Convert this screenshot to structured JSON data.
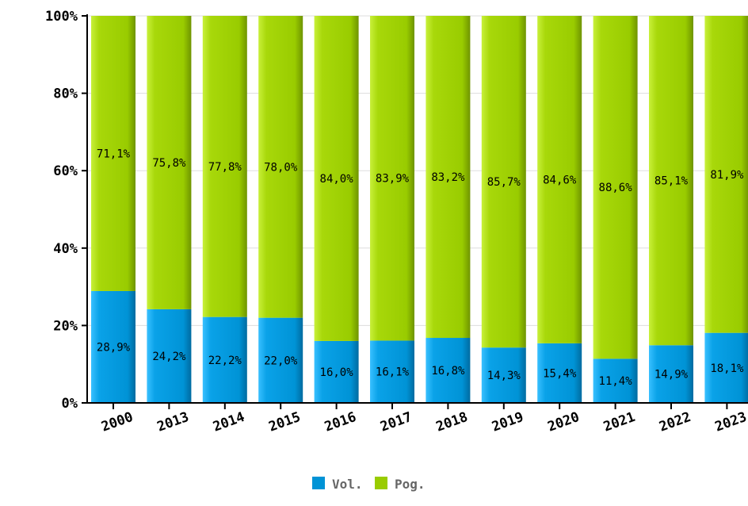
{
  "chart_data": {
    "type": "bar",
    "stacked": true,
    "percent": true,
    "categories": [
      "2000",
      "2013",
      "2014",
      "2015",
      "2016",
      "2017",
      "2018",
      "2019",
      "2020",
      "2021",
      "2022",
      "2023"
    ],
    "series": [
      {
        "name": "Vol.",
        "color": "#0093d6",
        "values": [
          28.9,
          24.2,
          22.2,
          22.0,
          16.0,
          16.1,
          16.8,
          14.3,
          15.4,
          11.4,
          14.9,
          18.1
        ],
        "labels": [
          "28,9%",
          "24,2%",
          "22,2%",
          "22,0%",
          "16,0%",
          "16,1%",
          "16,8%",
          "14,3%",
          "15,4%",
          "11,4%",
          "14,9%",
          "18,1%"
        ]
      },
      {
        "name": "Pog.",
        "color": "#99cc00",
        "values": [
          71.1,
          75.8,
          77.8,
          78.0,
          84.0,
          83.9,
          83.2,
          85.7,
          84.6,
          88.6,
          85.1,
          81.9
        ],
        "labels": [
          "71,1%",
          "75,8%",
          "77,8%",
          "78,0%",
          "84,0%",
          "83,9%",
          "83,2%",
          "85,7%",
          "84,6%",
          "88,6%",
          "85,1%",
          "81,9%"
        ]
      }
    ],
    "yticks": [
      "0%",
      "20%",
      "40%",
      "60%",
      "80%",
      "100%"
    ],
    "ylim": [
      0,
      100
    ],
    "title": "",
    "xlabel": "",
    "ylabel": "",
    "grid": true,
    "legend": "bottom-center"
  }
}
